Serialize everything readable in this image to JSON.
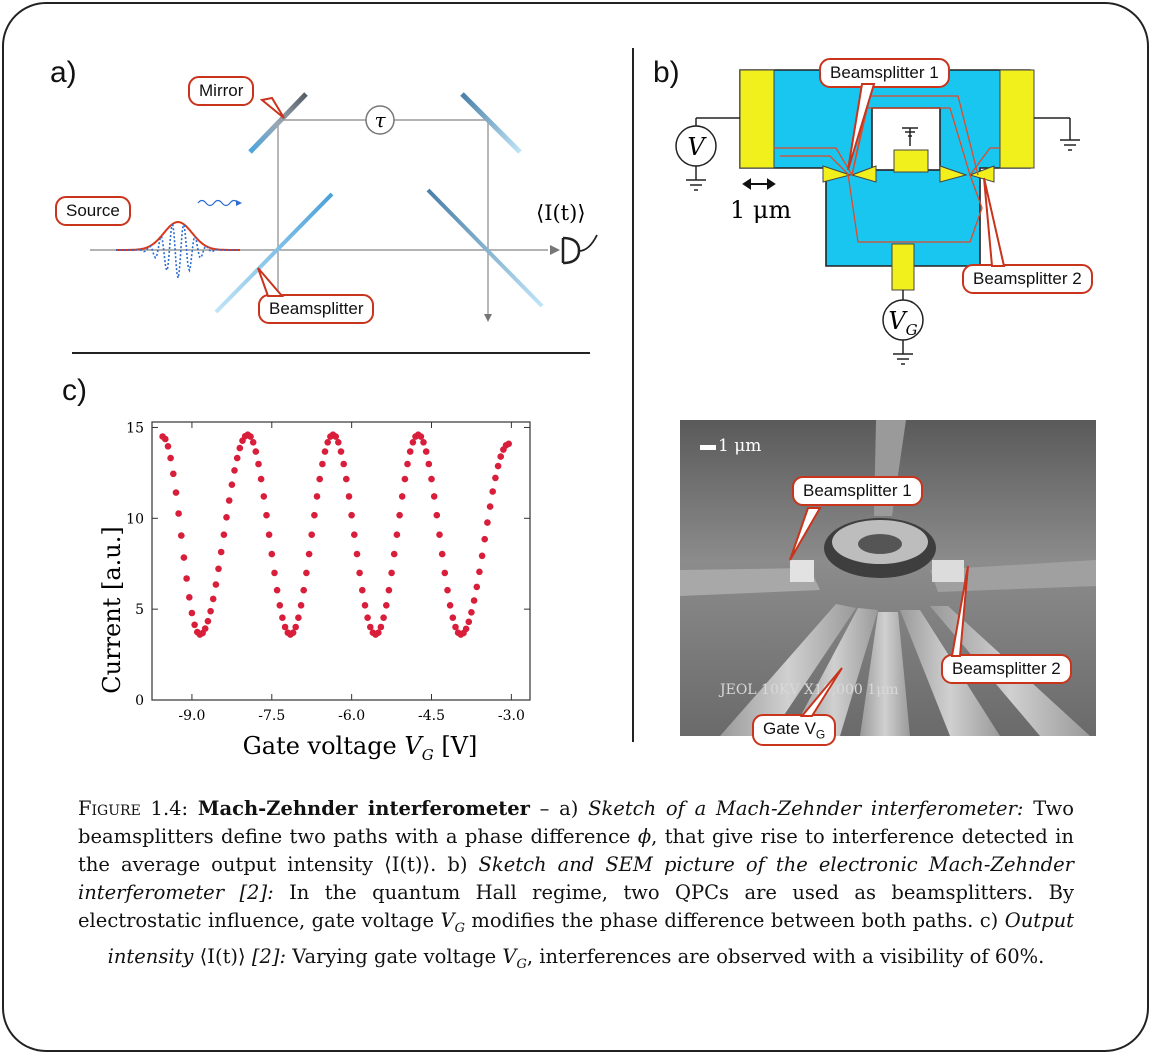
{
  "panel_a": {
    "letter": "a)",
    "labels": {
      "mirror": "Mirror",
      "source": "Source",
      "beamsplitter": "Beamsplitter",
      "tau": "τ",
      "output": "⟨I(t)⟩"
    }
  },
  "panel_b": {
    "letter": "b)",
    "labels": {
      "beamsplitter1": "Beamsplitter 1",
      "beamsplitter2": "Beamsplitter 2",
      "voltage": "V",
      "gate_voltage": "V",
      "gate_voltage_sub": "G",
      "scale": "1 μm"
    }
  },
  "sem_image": {
    "scale": "1 μm",
    "labels": {
      "beamsplitter1": "Beamsplitter 1",
      "beamsplitter2": "Beamsplitter 2",
      "gate": "Gate V",
      "gate_sub": "G"
    },
    "footer_text": "JEOL   10KV   X10,000   1μm"
  },
  "panel_c": {
    "letter": "c)"
  },
  "chart_data": {
    "type": "scatter",
    "xlabel": "Gate voltage V_G  [V]",
    "ylabel": "Current   [a.u.]",
    "xlim": [
      -9.75,
      -2.65
    ],
    "ylim": [
      0,
      15.3
    ],
    "xticks": [
      -9.0,
      -7.5,
      -6.0,
      -4.5,
      -3.0
    ],
    "xtick_labels": [
      "-9.0",
      "-7.5",
      "-6.0",
      "-4.5",
      "-3.0"
    ],
    "yticks": [
      0,
      5,
      10,
      15
    ],
    "ytick_labels": [
      "0",
      "5",
      "10",
      "15"
    ],
    "color": "#d81e3a",
    "series": [
      {
        "x_start": -9.55,
        "x_end": -3.05,
        "count": 131,
        "minima_x": [
          -8.85,
          -7.15,
          -5.55,
          -3.95
        ],
        "maxima_x": [
          -7.95,
          -6.35,
          -4.75
        ],
        "y_min": 3.6,
        "y_max": 14.6,
        "y_start": 14.5,
        "y_end": 14.1
      }
    ]
  },
  "caption": {
    "figure_label": "Figure 1.4:",
    "title": "Mach-Zehnder interferometer",
    "dash": "–",
    "a_label": "a)",
    "a_title": "Sketch of a Mach-Zehnder interferometer:",
    "a_text_1": "Two beamsplitters define two paths with a phase difference",
    "a_phi": "ϕ",
    "a_text_2": ", that give rise to interference detected in the average output intensity",
    "a_output": "⟨I(t)⟩",
    "b_label": ". b)",
    "b_title": "Sketch and SEM picture of the electronic Mach-Zehnder interferometer [2]:",
    "b_text_1": "In the quantum Hall regime, two QPCs are used as beamsplitters. By electrostatic influence, gate voltage",
    "b_vg": "V",
    "b_vg_sub": "G",
    "b_text_2": "modifies the phase difference between both paths.",
    "c_label": "c)",
    "c_title": "Output intensity",
    "c_output": "⟨I(t)⟩",
    "c_ref": "[2]:",
    "c_text_1": "Varying gate voltage",
    "c_vg": "V",
    "c_vg_sub": "G",
    "c_text_2": ", interferences are observed with a visibility of 60%."
  }
}
